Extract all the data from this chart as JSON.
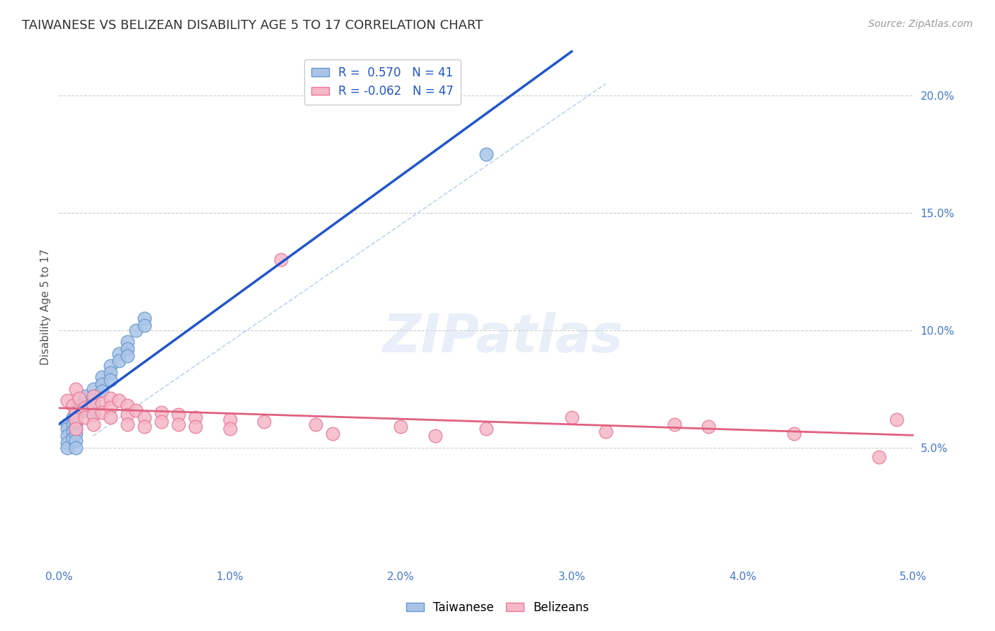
{
  "title": "TAIWANESE VS BELIZEAN DISABILITY AGE 5 TO 17 CORRELATION CHART",
  "source": "Source: ZipAtlas.com",
  "ylabel": "Disability Age 5 to 17",
  "xlim": [
    0.0,
    0.05
  ],
  "ylim": [
    0.0,
    0.22
  ],
  "xticks": [
    0.0,
    0.01,
    0.02,
    0.03,
    0.04,
    0.05
  ],
  "xticklabels": [
    "0.0%",
    "1.0%",
    "2.0%",
    "3.0%",
    "4.0%",
    "5.0%"
  ],
  "yticks_right": [
    0.05,
    0.1,
    0.15,
    0.2
  ],
  "yticklabels_right": [
    "5.0%",
    "10.0%",
    "15.0%",
    "20.0%"
  ],
  "grid_color": "#cccccc",
  "background_color": "#ffffff",
  "taiwanese_color": "#aac4e8",
  "taiwanese_edge": "#6699cc",
  "belizean_color": "#f5b8c8",
  "belizean_edge": "#e87899",
  "blue_line_color": "#2255cc",
  "pink_line_color": "#e06080",
  "dash_line_color": "#b0c8e8",
  "legend_r1": "R =  0.570",
  "legend_n1": "N = 41",
  "legend_r2": "R = -0.062",
  "legend_n2": "N = 47",
  "taiwanese_x": [
    0.0005,
    0.0005,
    0.0005,
    0.0005,
    0.0005,
    0.0008,
    0.0008,
    0.0008,
    0.0008,
    0.001,
    0.001,
    0.001,
    0.001,
    0.001,
    0.001,
    0.001,
    0.0012,
    0.0012,
    0.0015,
    0.0015,
    0.0015,
    0.002,
    0.002,
    0.002,
    0.002,
    0.002,
    0.0025,
    0.0025,
    0.0025,
    0.003,
    0.003,
    0.003,
    0.0035,
    0.0035,
    0.004,
    0.004,
    0.004,
    0.0045,
    0.005,
    0.005,
    0.025
  ],
  "taiwanese_y": [
    0.06,
    0.058,
    0.055,
    0.052,
    0.05,
    0.063,
    0.06,
    0.057,
    0.054,
    0.065,
    0.063,
    0.06,
    0.058,
    0.056,
    0.053,
    0.05,
    0.068,
    0.065,
    0.072,
    0.069,
    0.066,
    0.075,
    0.072,
    0.07,
    0.067,
    0.064,
    0.08,
    0.077,
    0.074,
    0.085,
    0.082,
    0.079,
    0.09,
    0.087,
    0.095,
    0.092,
    0.089,
    0.1,
    0.105,
    0.102,
    0.175
  ],
  "belizean_x": [
    0.0005,
    0.0008,
    0.001,
    0.001,
    0.001,
    0.001,
    0.0012,
    0.0015,
    0.0015,
    0.002,
    0.002,
    0.002,
    0.002,
    0.0025,
    0.0025,
    0.003,
    0.003,
    0.003,
    0.0035,
    0.004,
    0.004,
    0.004,
    0.0045,
    0.005,
    0.005,
    0.006,
    0.006,
    0.007,
    0.007,
    0.008,
    0.008,
    0.01,
    0.01,
    0.012,
    0.013,
    0.015,
    0.016,
    0.02,
    0.022,
    0.025,
    0.03,
    0.032,
    0.036,
    0.038,
    0.043,
    0.048,
    0.049
  ],
  "belizean_y": [
    0.07,
    0.068,
    0.075,
    0.065,
    0.062,
    0.058,
    0.071,
    0.067,
    0.063,
    0.072,
    0.068,
    0.064,
    0.06,
    0.069,
    0.065,
    0.071,
    0.067,
    0.063,
    0.07,
    0.068,
    0.064,
    0.06,
    0.066,
    0.063,
    0.059,
    0.065,
    0.061,
    0.064,
    0.06,
    0.063,
    0.059,
    0.062,
    0.058,
    0.061,
    0.13,
    0.06,
    0.056,
    0.059,
    0.055,
    0.058,
    0.063,
    0.057,
    0.06,
    0.059,
    0.056,
    0.046,
    0.062
  ]
}
